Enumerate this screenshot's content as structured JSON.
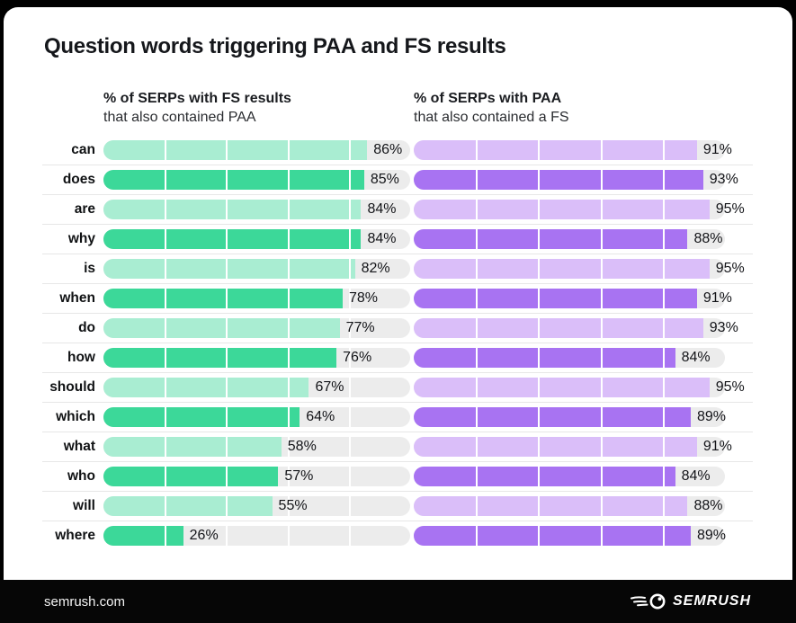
{
  "title": "Question words triggering PAA and FS results",
  "headers": {
    "left": {
      "line1": "% of SERPs with FS results",
      "line2": "that also contained PAA"
    },
    "right": {
      "line1": "% of SERPs with PAA",
      "line2": "that also contained a FS"
    }
  },
  "footer": {
    "site": "semrush.com",
    "logo_text": "semrush",
    "logo_icon": "semrush-speedball-icon"
  },
  "colors": {
    "track_gray": "#ececec",
    "separator": "#e7e7e7",
    "text": "#15171b",
    "card_bg": "#ffffff",
    "footer_bg": "#060606"
  },
  "chart_data": {
    "type": "bar",
    "orientation": "horizontal",
    "value_suffix": "%",
    "xlim": [
      0,
      100
    ],
    "segment_dividers_percent": [
      20,
      40,
      60,
      80
    ],
    "row_shade_pattern": "alternating light/dark starting light",
    "categories": [
      "can",
      "does",
      "are",
      "why",
      "is",
      "when",
      "do",
      "how",
      "should",
      "which",
      "what",
      "who",
      "will",
      "where"
    ],
    "series": [
      {
        "name": "% of SERPs with FS results that also contained PAA",
        "color_light": "#a9edd2",
        "color_dark": "#3cd899",
        "values": [
          86,
          85,
          84,
          84,
          82,
          78,
          77,
          76,
          67,
          64,
          58,
          57,
          55,
          26
        ]
      },
      {
        "name": "% of SERPs with PAA that also contained a FS",
        "color_light": "#dabef9",
        "color_dark": "#a873f2",
        "values": [
          91,
          93,
          95,
          88,
          95,
          91,
          93,
          84,
          95,
          89,
          91,
          84,
          88,
          89
        ]
      }
    ]
  }
}
